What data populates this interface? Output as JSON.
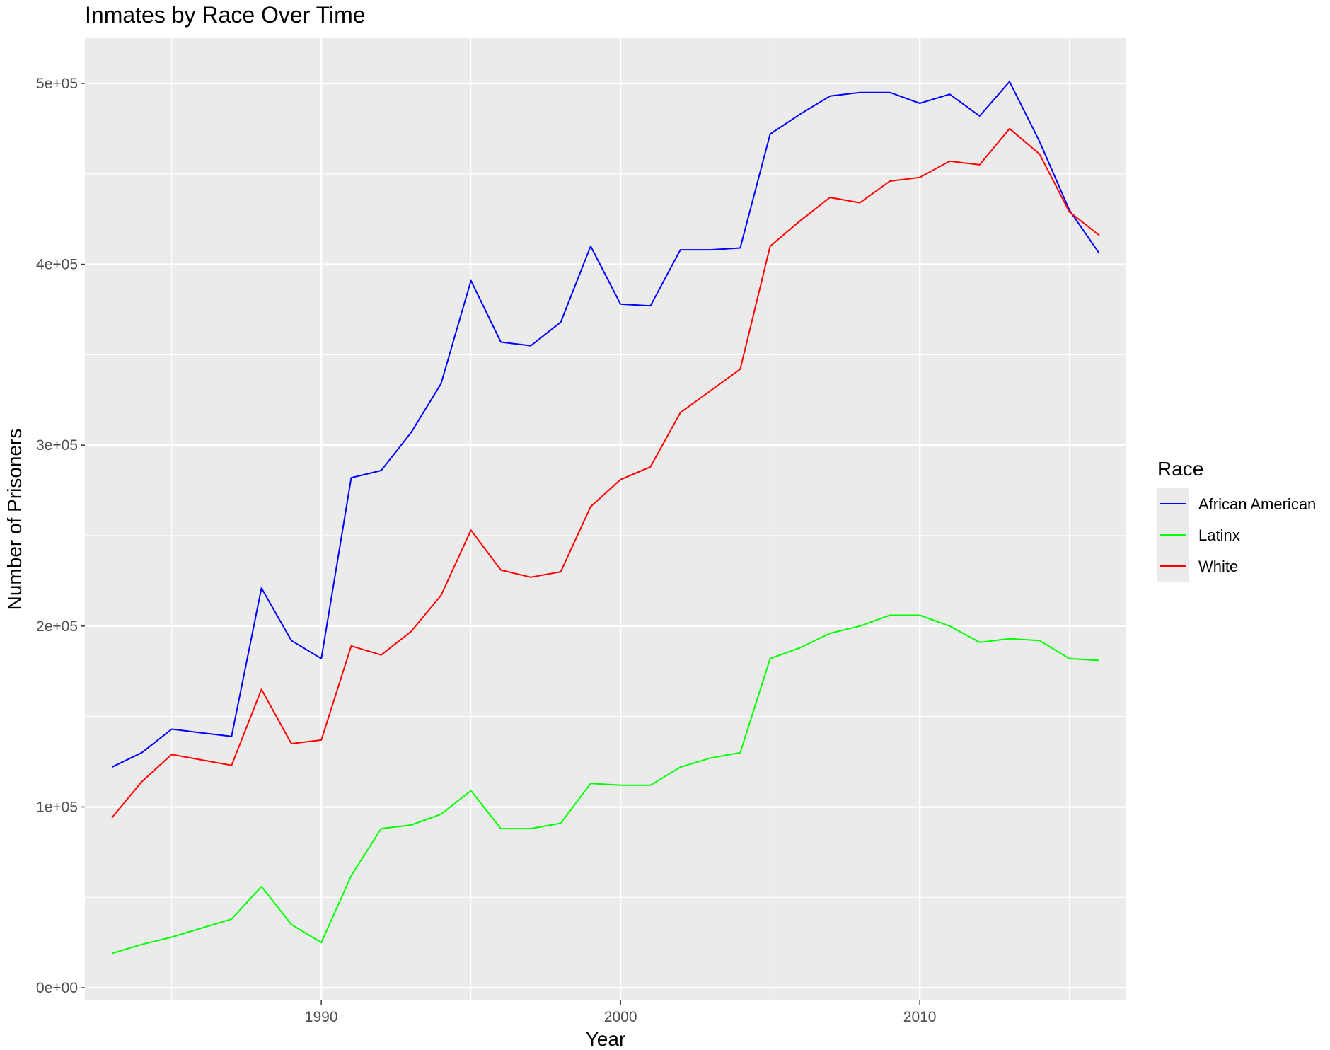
{
  "chart_data": {
    "type": "line",
    "title": "Inmates by Race Over Time",
    "xlabel": "Year",
    "ylabel": "Number of Prisoners",
    "xlim": [
      1982.1,
      2016.9
    ],
    "ylim": [
      -7000,
      525000
    ],
    "x_ticks": [
      1990,
      2000,
      2010
    ],
    "x_tick_labels": [
      "1990",
      "2000",
      "2010"
    ],
    "y_ticks": [
      0,
      100000,
      200000,
      300000,
      400000,
      500000
    ],
    "y_tick_labels": [
      "0e+00",
      "1e+05",
      "2e+05",
      "3e+05",
      "4e+05",
      "5e+05"
    ],
    "grid": true,
    "background": "#ebebeb",
    "legend": {
      "title": "Race",
      "position": "right"
    },
    "x": [
      1983,
      1984,
      1985,
      1986,
      1987,
      1988,
      1989,
      1990,
      1991,
      1992,
      1993,
      1994,
      1995,
      1996,
      1997,
      1998,
      1999,
      2000,
      2001,
      2002,
      2003,
      2004,
      2005,
      2006,
      2007,
      2008,
      2009,
      2010,
      2011,
      2012,
      2013,
      2014,
      2015,
      2016
    ],
    "series": [
      {
        "name": "African American",
        "color": "#0000ff",
        "values": [
          122000,
          130000,
          143000,
          141000,
          139000,
          221000,
          192000,
          182000,
          282000,
          286000,
          307000,
          334000,
          391000,
          357000,
          355000,
          368000,
          410000,
          378000,
          377000,
          408000,
          408000,
          409000,
          472000,
          483000,
          493000,
          495000,
          495000,
          489000,
          494000,
          482000,
          501000,
          468000,
          430000,
          406000
        ]
      },
      {
        "name": "Latinx",
        "color": "#00ff00",
        "values": [
          19000,
          24000,
          28000,
          33000,
          38000,
          56000,
          35000,
          25000,
          62000,
          88000,
          90000,
          96000,
          109000,
          88000,
          88000,
          91000,
          113000,
          112000,
          112000,
          122000,
          127000,
          130000,
          182000,
          188000,
          196000,
          200000,
          206000,
          206000,
          200000,
          191000,
          193000,
          192000,
          182000,
          181000
        ]
      },
      {
        "name": "White",
        "color": "#ff0000",
        "values": [
          94000,
          114000,
          129000,
          126000,
          123000,
          165000,
          135000,
          137000,
          189000,
          184000,
          197000,
          217000,
          253000,
          231000,
          227000,
          230000,
          266000,
          281000,
          288000,
          318000,
          330000,
          342000,
          410000,
          424000,
          437000,
          434000,
          446000,
          448000,
          457000,
          455000,
          475000,
          461000,
          429000,
          416000
        ]
      }
    ]
  }
}
